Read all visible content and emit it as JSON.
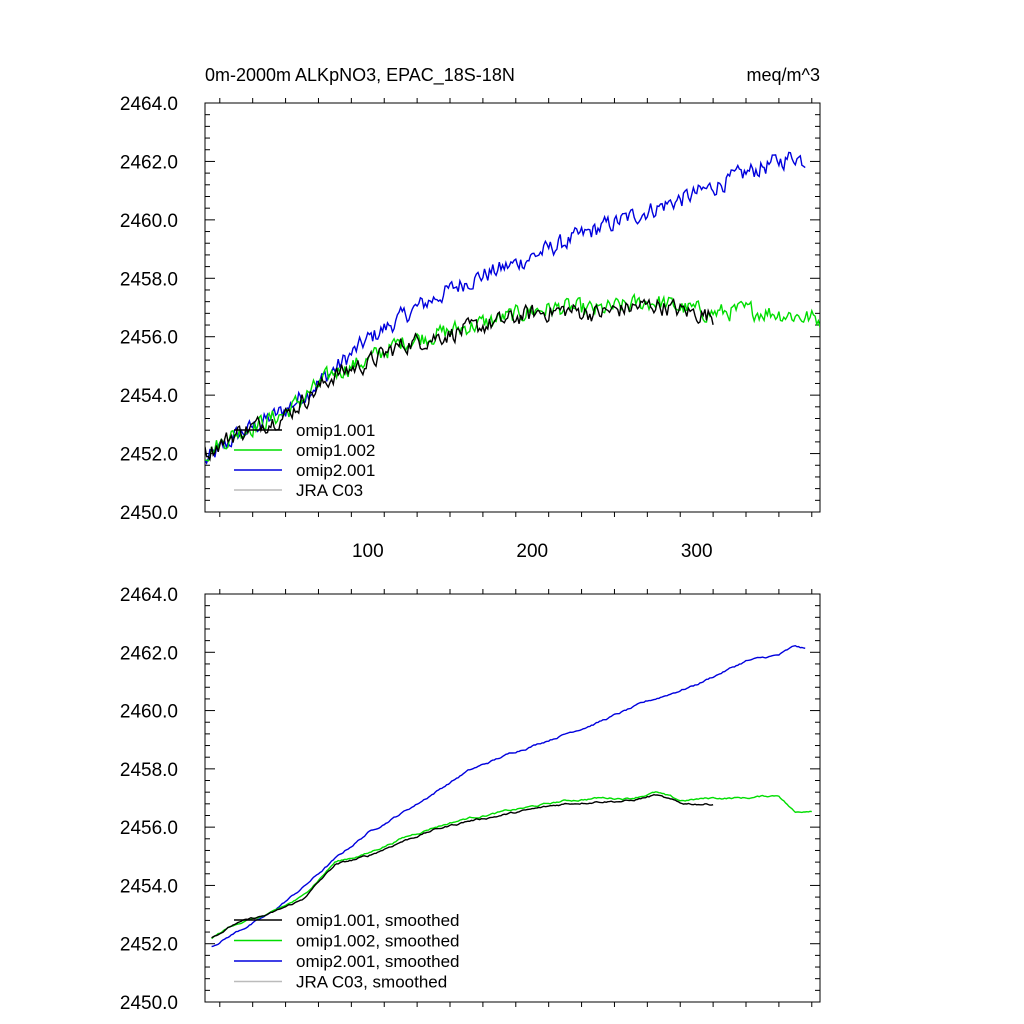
{
  "colors": {
    "omip1_001": "#000000",
    "omip1_002": "#00dd00",
    "omip2_001": "#0000dd",
    "jra_c03": "#bbbbbb"
  },
  "chart_data": [
    {
      "type": "line",
      "title_left": "0m-2000m ALKpNO3, EPAC_18S-18N",
      "title_right": "meq/m^3",
      "xlim": [
        1,
        375
      ],
      "ylim": [
        2450.0,
        2464.0
      ],
      "x_ticks": [
        100,
        200,
        300
      ],
      "x_tick_labels": [
        "100",
        "200",
        "300"
      ],
      "y_ticks": [
        2450,
        2452,
        2454,
        2456,
        2458,
        2460,
        2462,
        2464
      ],
      "y_tick_labels": [
        "2450.0",
        "2452.0",
        "2454.0",
        "2456.0",
        "2458.0",
        "2460.0",
        "2462.0",
        "2464.0"
      ],
      "legend_position": "bottom-left",
      "smoothed": false,
      "series": [
        {
          "name": "omip1.001",
          "color_key": "omip1_001",
          "x": [
            1,
            20,
            50,
            80,
            100,
            120,
            150,
            180,
            200,
            220,
            240,
            260,
            275,
            290,
            310
          ],
          "y": [
            2452.0,
            2452.7,
            2453.3,
            2454.7,
            2455.1,
            2455.7,
            2456.1,
            2456.5,
            2456.8,
            2456.9,
            2456.8,
            2457.0,
            2457.1,
            2456.9,
            2456.7
          ]
        },
        {
          "name": "omip1.002",
          "color_key": "omip1_002",
          "x": [
            1,
            20,
            50,
            80,
            100,
            120,
            150,
            180,
            200,
            220,
            240,
            260,
            275,
            290,
            310,
            330,
            350,
            375
          ],
          "y": [
            2452.0,
            2452.7,
            2453.4,
            2454.8,
            2455.2,
            2455.8,
            2456.2,
            2456.6,
            2456.9,
            2457.0,
            2456.9,
            2457.1,
            2457.2,
            2457.0,
            2456.8,
            2456.9,
            2456.8,
            2456.6
          ]
        },
        {
          "name": "omip2.001",
          "color_key": "omip2_001",
          "x": [
            1,
            20,
            50,
            80,
            100,
            130,
            160,
            190,
            210,
            240,
            270,
            300,
            330,
            350,
            360,
            366
          ],
          "y": [
            2451.7,
            2452.6,
            2453.5,
            2454.9,
            2455.9,
            2457.0,
            2457.9,
            2458.5,
            2459.0,
            2459.7,
            2460.3,
            2460.9,
            2461.6,
            2462.0,
            2462.2,
            2462.0
          ]
        },
        {
          "name": "JRA C03",
          "color_key": "jra_c03",
          "x": [],
          "y": []
        }
      ]
    },
    {
      "type": "line",
      "xlim": [
        1,
        375
      ],
      "ylim": [
        2450.0,
        2464.0
      ],
      "x_ticks": [
        100,
        200,
        300
      ],
      "y_ticks": [
        2450,
        2452,
        2454,
        2456,
        2458,
        2460,
        2462,
        2464
      ],
      "y_tick_labels": [
        "2450.0",
        "2452.0",
        "2454.0",
        "2456.0",
        "2458.0",
        "2460.0",
        "2462.0",
        "2464.0"
      ],
      "legend_position": "bottom-left",
      "smoothed": true,
      "series": [
        {
          "name": "omip1.001, smoothed",
          "color_key": "omip1_001",
          "x": [
            5,
            20,
            40,
            60,
            80,
            100,
            120,
            140,
            160,
            180,
            200,
            220,
            240,
            260,
            275,
            290,
            310
          ],
          "y": [
            2452.2,
            2452.7,
            2453.0,
            2453.5,
            2454.7,
            2455.0,
            2455.5,
            2455.9,
            2456.2,
            2456.4,
            2456.6,
            2456.8,
            2456.9,
            2456.9,
            2457.1,
            2456.8,
            2456.8
          ]
        },
        {
          "name": "omip1.002, smoothed",
          "color_key": "omip1_002",
          "x": [
            5,
            20,
            40,
            60,
            80,
            100,
            120,
            140,
            160,
            180,
            200,
            220,
            240,
            260,
            275,
            290,
            310,
            330,
            350,
            360,
            370
          ],
          "y": [
            2452.2,
            2452.7,
            2453.0,
            2453.6,
            2454.8,
            2455.1,
            2455.6,
            2456.0,
            2456.3,
            2456.5,
            2456.7,
            2456.9,
            2457.0,
            2457.0,
            2457.2,
            2456.9,
            2457.0,
            2457.0,
            2457.1,
            2456.5,
            2456.6
          ]
        },
        {
          "name": "omip2.001, smoothed",
          "color_key": "omip2_001",
          "x": [
            5,
            20,
            40,
            60,
            80,
            100,
            130,
            160,
            190,
            210,
            240,
            270,
            300,
            330,
            350,
            360,
            366
          ],
          "y": [
            2451.9,
            2452.4,
            2453.0,
            2453.9,
            2454.9,
            2455.8,
            2456.8,
            2457.9,
            2458.6,
            2459.0,
            2459.6,
            2460.3,
            2460.9,
            2461.7,
            2461.9,
            2462.2,
            2462.1
          ]
        },
        {
          "name": "JRA C03, smoothed",
          "color_key": "jra_c03",
          "x": [],
          "y": []
        }
      ]
    }
  ]
}
